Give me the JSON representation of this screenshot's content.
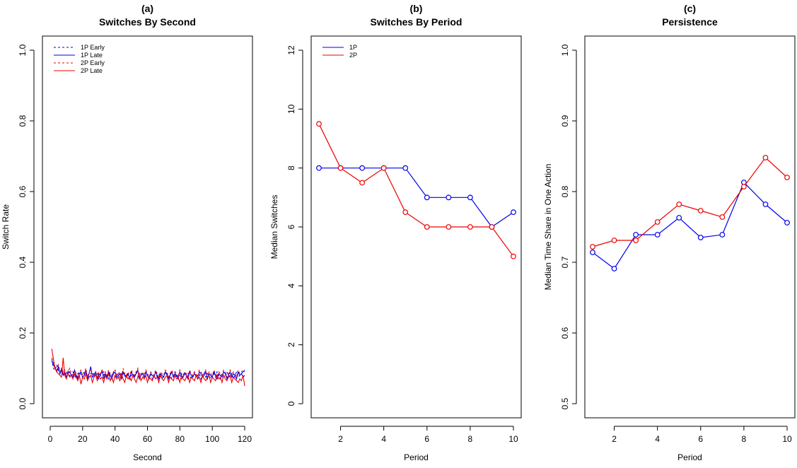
{
  "colors": {
    "1P": "#0000ee",
    "2P": "#ee0000",
    "axis": "#000000"
  },
  "chart_data": [
    {
      "panel_letter": "(a)",
      "title": "Switches By Second",
      "type": "line",
      "xlabel": "Second",
      "ylabel": "Switch Rate",
      "xlim": [
        0,
        120
      ],
      "ylim": [
        0,
        1
      ],
      "xticks": [
        0,
        20,
        40,
        60,
        80,
        100,
        120
      ],
      "yticks": [
        0.0,
        0.2,
        0.4,
        0.6,
        0.8,
        1.0
      ],
      "ytick_labels": [
        "0.0",
        "0.2",
        "0.4",
        "0.6",
        "0.8",
        "1.0"
      ],
      "legend_position": "top-left",
      "x": [
        1,
        2,
        3,
        4,
        5,
        6,
        7,
        8,
        9,
        10,
        11,
        12,
        13,
        14,
        15,
        16,
        17,
        18,
        19,
        20,
        21,
        22,
        23,
        24,
        25,
        26,
        27,
        28,
        29,
        30,
        31,
        32,
        33,
        34,
        35,
        36,
        37,
        38,
        39,
        40,
        41,
        42,
        43,
        44,
        45,
        46,
        47,
        48,
        49,
        50,
        51,
        52,
        53,
        54,
        55,
        56,
        57,
        58,
        59,
        60,
        61,
        62,
        63,
        64,
        65,
        66,
        67,
        68,
        69,
        70,
        71,
        72,
        73,
        74,
        75,
        76,
        77,
        78,
        79,
        80,
        81,
        82,
        83,
        84,
        85,
        86,
        87,
        88,
        89,
        90,
        91,
        92,
        93,
        94,
        95,
        96,
        97,
        98,
        99,
        100,
        101,
        102,
        103,
        104,
        105,
        106,
        107,
        108,
        109,
        110,
        111,
        112,
        113,
        114,
        115,
        116,
        117,
        118,
        119,
        120
      ],
      "series": [
        {
          "name": "1P Early",
          "color": "#0000ee",
          "dash": true,
          "values": [
            0.125,
            0.1,
            0.095,
            0.11,
            0.095,
            0.085,
            0.1,
            0.09,
            0.08,
            0.085,
            0.095,
            0.08,
            0.075,
            0.09,
            0.08,
            0.07,
            0.085,
            0.09,
            0.08,
            0.075,
            0.09,
            0.085,
            0.08,
            0.075,
            0.085,
            0.09,
            0.075,
            0.08,
            0.085,
            0.07,
            0.08,
            0.085,
            0.09,
            0.075,
            0.08,
            0.07,
            0.085,
            0.08,
            0.09,
            0.075,
            0.08,
            0.085,
            0.07,
            0.08,
            0.09,
            0.075,
            0.085,
            0.08,
            0.07,
            0.08,
            0.085,
            0.075,
            0.09,
            0.08,
            0.07,
            0.085,
            0.08,
            0.075,
            0.09,
            0.08,
            0.075,
            0.085,
            0.07,
            0.08,
            0.09,
            0.075,
            0.08,
            0.085,
            0.07,
            0.08,
            0.09,
            0.08,
            0.075,
            0.085,
            0.07,
            0.08,
            0.09,
            0.075,
            0.08,
            0.085,
            0.07,
            0.08,
            0.09,
            0.075,
            0.085,
            0.08,
            0.07,
            0.08,
            0.09,
            0.075,
            0.08,
            0.085,
            0.07,
            0.08,
            0.09,
            0.075,
            0.085,
            0.08,
            0.07,
            0.08,
            0.085,
            0.075,
            0.09,
            0.08,
            0.07,
            0.085,
            0.08,
            0.075,
            0.09,
            0.08,
            0.075,
            0.085,
            0.07,
            0.08,
            0.09,
            0.075,
            0.08,
            0.085,
            0.075,
            0.08
          ]
        },
        {
          "name": "1P Late",
          "color": "#0000ee",
          "dash": false,
          "values": [
            0.12,
            0.11,
            0.1,
            0.09,
            0.105,
            0.085,
            0.095,
            0.08,
            0.09,
            0.075,
            0.085,
            0.09,
            0.08,
            0.075,
            0.095,
            0.08,
            0.07,
            0.085,
            0.09,
            0.075,
            0.08,
            0.095,
            0.07,
            0.085,
            0.105,
            0.075,
            0.08,
            0.09,
            0.07,
            0.085,
            0.08,
            0.095,
            0.07,
            0.085,
            0.075,
            0.09,
            0.08,
            0.07,
            0.085,
            0.09,
            0.075,
            0.08,
            0.085,
            0.07,
            0.09,
            0.08,
            0.075,
            0.085,
            0.07,
            0.09,
            0.08,
            0.075,
            0.085,
            0.095,
            0.07,
            0.08,
            0.085,
            0.075,
            0.09,
            0.08,
            0.07,
            0.085,
            0.08,
            0.075,
            0.09,
            0.08,
            0.07,
            0.085,
            0.08,
            0.075,
            0.09,
            0.085,
            0.07,
            0.08,
            0.09,
            0.075,
            0.085,
            0.08,
            0.07,
            0.09,
            0.08,
            0.075,
            0.085,
            0.08,
            0.07,
            0.09,
            0.08,
            0.075,
            0.085,
            0.08,
            0.07,
            0.09,
            0.085,
            0.075,
            0.08,
            0.09,
            0.07,
            0.085,
            0.08,
            0.075,
            0.09,
            0.08,
            0.07,
            0.085,
            0.08,
            0.075,
            0.09,
            0.085,
            0.07,
            0.08,
            0.09,
            0.075,
            0.085,
            0.08,
            0.07,
            0.09,
            0.08,
            0.085,
            0.09,
            0.095
          ]
        },
        {
          "name": "2P Early",
          "color": "#ee0000",
          "dash": true,
          "values": [
            0.13,
            0.115,
            0.1,
            0.095,
            0.11,
            0.09,
            0.1,
            0.085,
            0.095,
            0.08,
            0.09,
            0.1,
            0.085,
            0.08,
            0.095,
            0.085,
            0.075,
            0.09,
            0.095,
            0.08,
            0.085,
            0.1,
            0.075,
            0.09,
            0.095,
            0.08,
            0.085,
            0.09,
            0.075,
            0.09,
            0.085,
            0.095,
            0.08,
            0.09,
            0.08,
            0.095,
            0.085,
            0.075,
            0.09,
            0.095,
            0.08,
            0.085,
            0.09,
            0.075,
            0.1,
            0.085,
            0.08,
            0.09,
            0.075,
            0.095,
            0.085,
            0.08,
            0.09,
            0.1,
            0.075,
            0.085,
            0.09,
            0.08,
            0.095,
            0.085,
            0.075,
            0.09,
            0.085,
            0.08,
            0.095,
            0.085,
            0.075,
            0.09,
            0.085,
            0.08,
            0.095,
            0.09,
            0.075,
            0.085,
            0.095,
            0.08,
            0.09,
            0.085,
            0.075,
            0.095,
            0.085,
            0.08,
            0.09,
            0.085,
            0.075,
            0.095,
            0.085,
            0.08,
            0.09,
            0.085,
            0.075,
            0.095,
            0.09,
            0.08,
            0.085,
            0.095,
            0.075,
            0.09,
            0.085,
            0.08,
            0.095,
            0.085,
            0.075,
            0.09,
            0.085,
            0.08,
            0.095,
            0.09,
            0.075,
            0.085,
            0.095,
            0.08,
            0.09,
            0.085,
            0.075,
            0.095,
            0.085,
            0.09,
            0.095,
            0.09
          ]
        },
        {
          "name": "2P Late",
          "color": "#ee0000",
          "dash": false,
          "values": [
            0.155,
            0.125,
            0.1,
            0.09,
            0.085,
            0.08,
            0.075,
            0.13,
            0.08,
            0.07,
            0.085,
            0.075,
            0.08,
            0.07,
            0.085,
            0.075,
            0.065,
            0.08,
            0.055,
            0.075,
            0.07,
            0.085,
            0.065,
            0.075,
            0.08,
            0.06,
            0.075,
            0.085,
            0.065,
            0.08,
            0.07,
            0.075,
            0.06,
            0.08,
            0.07,
            0.085,
            0.065,
            0.075,
            0.06,
            0.08,
            0.07,
            0.075,
            0.065,
            0.085,
            0.07,
            0.06,
            0.08,
            0.07,
            0.075,
            0.065,
            0.08,
            0.07,
            0.06,
            0.075,
            0.085,
            0.065,
            0.075,
            0.07,
            0.08,
            0.06,
            0.075,
            0.07,
            0.065,
            0.08,
            0.07,
            0.075,
            0.06,
            0.08,
            0.07,
            0.065,
            0.075,
            0.08,
            0.06,
            0.075,
            0.07,
            0.065,
            0.08,
            0.07,
            0.075,
            0.06,
            0.08,
            0.07,
            0.065,
            0.075,
            0.08,
            0.06,
            0.075,
            0.07,
            0.065,
            0.08,
            0.07,
            0.075,
            0.06,
            0.08,
            0.07,
            0.065,
            0.075,
            0.08,
            0.06,
            0.075,
            0.07,
            0.065,
            0.08,
            0.07,
            0.075,
            0.06,
            0.08,
            0.07,
            0.065,
            0.075,
            0.08,
            0.06,
            0.075,
            0.07,
            0.065,
            0.06,
            0.07,
            0.065,
            0.08,
            0.05
          ]
        }
      ]
    },
    {
      "panel_letter": "(b)",
      "title": "Switches By Period",
      "type": "line",
      "markers": "open-circle",
      "xlabel": "Period",
      "ylabel": "Median Switches",
      "xlim": [
        1,
        10
      ],
      "ylim": [
        0,
        12
      ],
      "xticks": [
        2,
        4,
        6,
        8,
        10
      ],
      "yticks": [
        0,
        2,
        4,
        6,
        8,
        10,
        12
      ],
      "ytick_labels": [
        "0",
        "2",
        "4",
        "6",
        "8",
        "10",
        "12"
      ],
      "legend_position": "top-left",
      "x": [
        1,
        2,
        3,
        4,
        5,
        6,
        7,
        8,
        9,
        10
      ],
      "series": [
        {
          "name": "1P",
          "color": "#0000ee",
          "values": [
            8,
            8,
            8,
            8,
            8,
            7,
            7,
            7,
            6,
            6.5
          ]
        },
        {
          "name": "2P",
          "color": "#ee0000",
          "values": [
            9.5,
            8,
            7.5,
            8,
            6.5,
            6,
            6,
            6,
            6,
            5
          ]
        }
      ]
    },
    {
      "panel_letter": "(c)",
      "title": "Persistence",
      "type": "line",
      "markers": "open-circle",
      "xlabel": "Period",
      "ylabel": "Median Time Share in One Action",
      "xlim": [
        1,
        10
      ],
      "ylim": [
        0.5,
        1.0
      ],
      "xticks": [
        2,
        4,
        6,
        8,
        10
      ],
      "yticks": [
        0.5,
        0.6,
        0.7,
        0.8,
        0.9,
        1.0
      ],
      "ytick_labels": [
        "0.5",
        "0.6",
        "0.7",
        "0.8",
        "0.9",
        "1.0"
      ],
      "x": [
        1,
        2,
        3,
        4,
        5,
        6,
        7,
        8,
        9,
        10
      ],
      "series": [
        {
          "color": "#0000ee",
          "values": [
            0.714,
            0.691,
            0.739,
            0.739,
            0.763,
            0.735,
            0.739,
            0.813,
            0.782,
            0.756
          ]
        },
        {
          "color": "#ee0000",
          "values": [
            0.722,
            0.731,
            0.731,
            0.757,
            0.782,
            0.773,
            0.764,
            0.807,
            0.848,
            0.82
          ]
        }
      ]
    }
  ]
}
